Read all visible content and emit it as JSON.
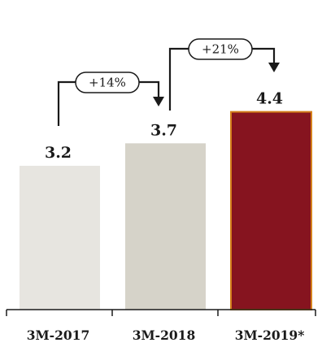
{
  "chart_data": {
    "type": "bar",
    "title": "",
    "xlabel": "",
    "ylabel": "",
    "categories": [
      "3M-2017",
      "3M-2018",
      "3M-2019*"
    ],
    "values": [
      3.2,
      3.7,
      4.4
    ],
    "value_labels": [
      "3.2",
      "3.7",
      "4.4"
    ],
    "bar_colors": [
      "#e7e5e0",
      "#d6d3c9",
      "#86141f"
    ],
    "highlight_border": "#d4801b",
    "ylim": [
      0,
      5
    ],
    "grid": false,
    "legend": "none",
    "annotations": [
      {
        "from": "3M-2017",
        "to": "3M-2018",
        "text": "+14%"
      },
      {
        "from": "3M-2018",
        "to": "3M-2019*",
        "text": "+21%"
      }
    ]
  }
}
